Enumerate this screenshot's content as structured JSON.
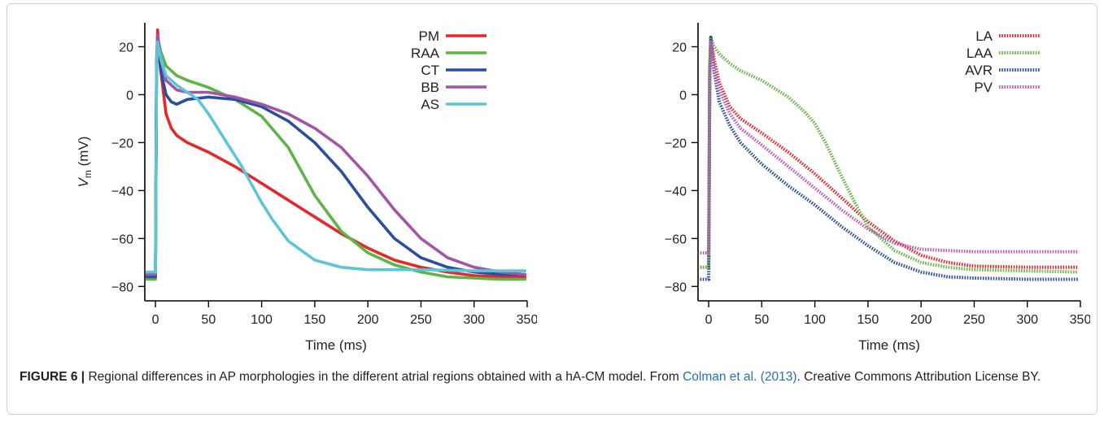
{
  "caption": {
    "figure_label": "FIGURE 6 |",
    "text_before_link": "Regional differences in AP morphologies in the different atrial regions obtained with a hA-CM model. From",
    "link_text": "Colman et al. (2013)",
    "text_after_link": ". Creative Commons Attribution License BY."
  },
  "chart_data": [
    {
      "type": "line",
      "xlabel": "Time (ms)",
      "ylabel": "V",
      "ylabel_subscript": "m",
      "ylabel_unit": "(mV)",
      "xlim": [
        -10,
        350
      ],
      "ylim": [
        -86,
        30
      ],
      "xticks": [
        0,
        50,
        100,
        150,
        200,
        250,
        300,
        350
      ],
      "yticks": [
        -80,
        -60,
        -40,
        -20,
        0,
        20
      ],
      "xtick_labels": [
        "0",
        "50",
        "100",
        "150",
        "200",
        "250",
        "300",
        "350"
      ],
      "ytick_labels": [
        "−80",
        "−60",
        "−40",
        "−20",
        "0",
        "20"
      ],
      "grid": false,
      "legend_position": "top-right",
      "line_style": "solid",
      "series": [
        {
          "name": "PM",
          "color": "#e8262a",
          "x": [
            -8,
            0,
            1,
            2,
            5,
            10,
            15,
            20,
            30,
            50,
            75,
            100,
            125,
            150,
            175,
            200,
            225,
            250,
            275,
            300,
            325,
            348
          ],
          "y": [
            -75,
            -75,
            10,
            27,
            10,
            -8,
            -14,
            -17,
            -20,
            -24,
            -30,
            -37,
            -44,
            -51,
            -58,
            -64,
            -69,
            -72,
            -74,
            -75.5,
            -76,
            -76
          ]
        },
        {
          "name": "RAA",
          "color": "#5cb646",
          "x": [
            -8,
            0,
            1,
            2,
            5,
            10,
            20,
            30,
            50,
            75,
            100,
            125,
            150,
            175,
            200,
            225,
            250,
            275,
            300,
            325,
            348
          ],
          "y": [
            -77,
            -77,
            15,
            24,
            18,
            12,
            8,
            6,
            3,
            -2,
            -9,
            -22,
            -42,
            -57,
            -66,
            -71,
            -74,
            -76,
            -76.5,
            -77,
            -77
          ]
        },
        {
          "name": "CT",
          "color": "#2b4fa0",
          "x": [
            -8,
            0,
            1,
            2,
            5,
            10,
            15,
            20,
            30,
            50,
            75,
            100,
            125,
            150,
            175,
            200,
            225,
            250,
            275,
            300,
            325,
            348
          ],
          "y": [
            -76,
            -76,
            10,
            22,
            10,
            0,
            -3,
            -4,
            -2,
            -1,
            -2,
            -5,
            -11,
            -20,
            -32,
            -47,
            -60,
            -68,
            -72,
            -74,
            -75,
            -75
          ]
        },
        {
          "name": "BB",
          "color": "#a454a6",
          "x": [
            -8,
            0,
            1,
            2,
            5,
            10,
            20,
            30,
            50,
            75,
            100,
            125,
            150,
            175,
            200,
            225,
            250,
            275,
            300,
            325,
            348
          ],
          "y": [
            -75,
            -75,
            12,
            25,
            15,
            6,
            2,
            1,
            1,
            -1,
            -4,
            -8,
            -14,
            -22,
            -34,
            -48,
            -60,
            -68,
            -72,
            -74,
            -75
          ]
        },
        {
          "name": "AS",
          "color": "#5cc5d8",
          "x": [
            -8,
            0,
            1,
            2,
            5,
            10,
            20,
            30,
            40,
            50,
            60,
            70,
            80,
            90,
            100,
            110,
            125,
            150,
            175,
            200,
            250,
            300,
            348
          ],
          "y": [
            -74,
            -74,
            10,
            22,
            15,
            8,
            4,
            1,
            -2,
            -8,
            -15,
            -22,
            -29,
            -37,
            -45,
            -52,
            -61,
            -69,
            -72,
            -73,
            -73,
            -73.5,
            -73.5
          ]
        }
      ]
    },
    {
      "type": "line",
      "xlabel": "Time (ms)",
      "ylabel": "",
      "xlim": [
        -10,
        350
      ],
      "ylim": [
        -86,
        30
      ],
      "xticks": [
        0,
        50,
        100,
        150,
        200,
        250,
        300,
        350
      ],
      "yticks": [
        -80,
        -60,
        -40,
        -20,
        0,
        20
      ],
      "xtick_labels": [
        "0",
        "50",
        "100",
        "150",
        "200",
        "250",
        "300",
        "350"
      ],
      "ytick_labels": [
        "−80",
        "−60",
        "−40",
        "−20",
        "0",
        "20"
      ],
      "grid": false,
      "legend_position": "top-right",
      "line_style": "dotted",
      "series": [
        {
          "name": "LA",
          "color": "#e8262a",
          "x": [
            -8,
            0,
            1,
            2,
            5,
            10,
            20,
            30,
            50,
            75,
            100,
            125,
            150,
            175,
            200,
            225,
            250,
            300,
            348
          ],
          "y": [
            -72,
            -72,
            10,
            24,
            15,
            5,
            -5,
            -10,
            -16,
            -24,
            -33,
            -43,
            -53,
            -61,
            -67,
            -70,
            -71.5,
            -72,
            -72
          ]
        },
        {
          "name": "LAA",
          "color": "#66b84a",
          "x": [
            -8,
            0,
            1,
            2,
            5,
            10,
            20,
            30,
            50,
            75,
            90,
            100,
            110,
            125,
            140,
            150,
            175,
            200,
            225,
            250,
            300,
            348
          ],
          "y": [
            -72,
            -72,
            12,
            24,
            20,
            17,
            13,
            10,
            6,
            -1,
            -7,
            -12,
            -20,
            -34,
            -47,
            -55,
            -65,
            -70,
            -72,
            -73,
            -73.5,
            -74
          ]
        },
        {
          "name": "AVR",
          "color": "#2b4fa0",
          "x": [
            -8,
            0,
            1,
            2,
            5,
            10,
            20,
            30,
            50,
            75,
            100,
            125,
            150,
            175,
            200,
            225,
            250,
            300,
            348
          ],
          "y": [
            -77,
            -77,
            8,
            24,
            10,
            -3,
            -13,
            -20,
            -29,
            -38,
            -46,
            -55,
            -63,
            -70,
            -74,
            -76,
            -76.5,
            -77,
            -77
          ]
        },
        {
          "name": "PV",
          "color": "#c259b5",
          "x": [
            -8,
            0,
            1,
            2,
            5,
            10,
            20,
            30,
            50,
            75,
            100,
            125,
            150,
            175,
            200,
            225,
            250,
            300,
            348
          ],
          "y": [
            -66,
            -66,
            10,
            22,
            12,
            2,
            -8,
            -14,
            -21,
            -30,
            -39,
            -48,
            -56,
            -62,
            -64.5,
            -65,
            -65.5,
            -65.5,
            -65.5
          ]
        }
      ]
    }
  ]
}
